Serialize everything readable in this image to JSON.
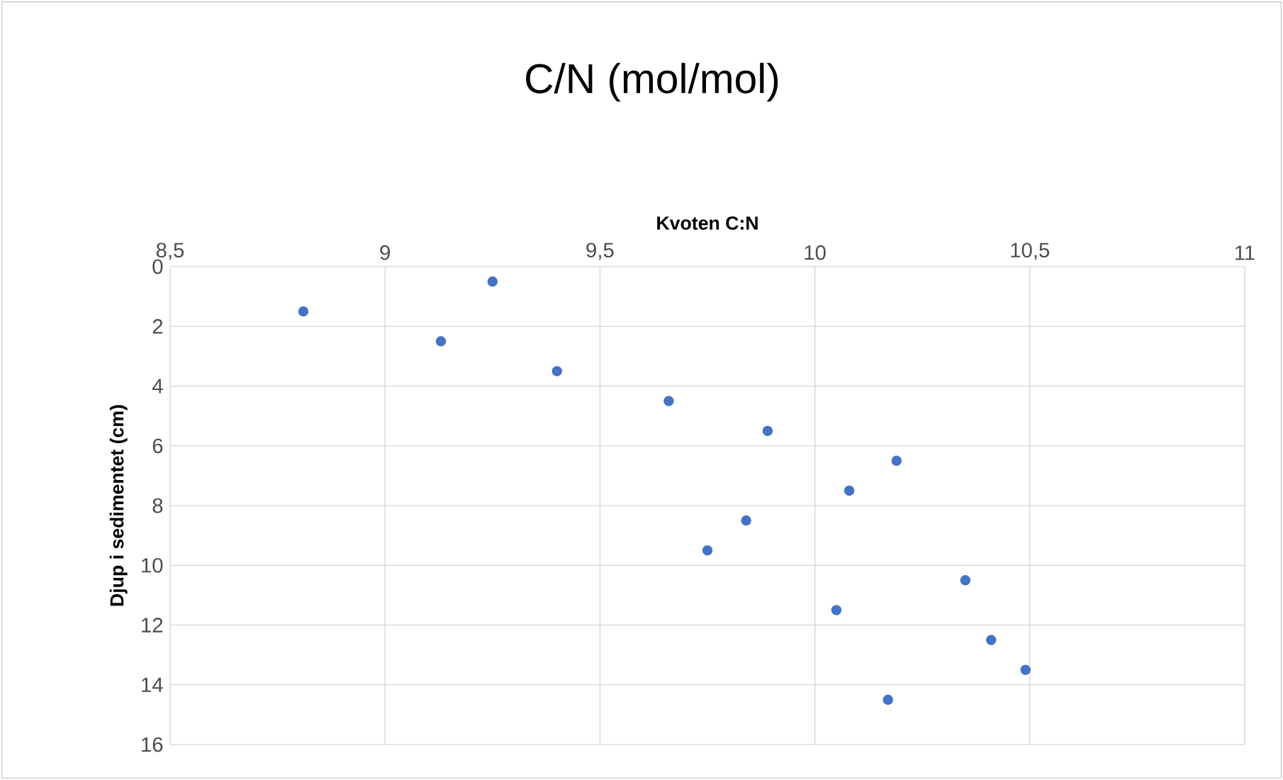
{
  "chart_data": {
    "type": "scatter",
    "title": "C/N (mol/mol)",
    "xlabel": "Kvoten C:N",
    "ylabel": "Djup i sedimentet (cm)",
    "x": [
      9.25,
      8.81,
      9.13,
      9.4,
      9.66,
      9.89,
      10.19,
      10.08,
      9.84,
      9.75,
      10.35,
      10.05,
      10.41,
      10.49,
      10.17
    ],
    "values": [
      0.5,
      1.5,
      2.5,
      3.5,
      4.5,
      5.5,
      6.5,
      7.5,
      8.5,
      9.5,
      10.5,
      11.5,
      12.5,
      13.5,
      14.5
    ],
    "color": "#4472c4",
    "marker": "circle",
    "xlim": [
      8.5,
      11
    ],
    "xticks": [
      {
        "value": 8.5,
        "label": "8,5"
      },
      9,
      {
        "value": 9.5,
        "label": "9,5"
      },
      10,
      {
        "value": 10.5,
        "label": "10,5"
      },
      11
    ],
    "ylim": [
      16,
      0
    ],
    "yticks": [
      0,
      2,
      4,
      6,
      8,
      10,
      12,
      14,
      16
    ],
    "grid": true
  }
}
